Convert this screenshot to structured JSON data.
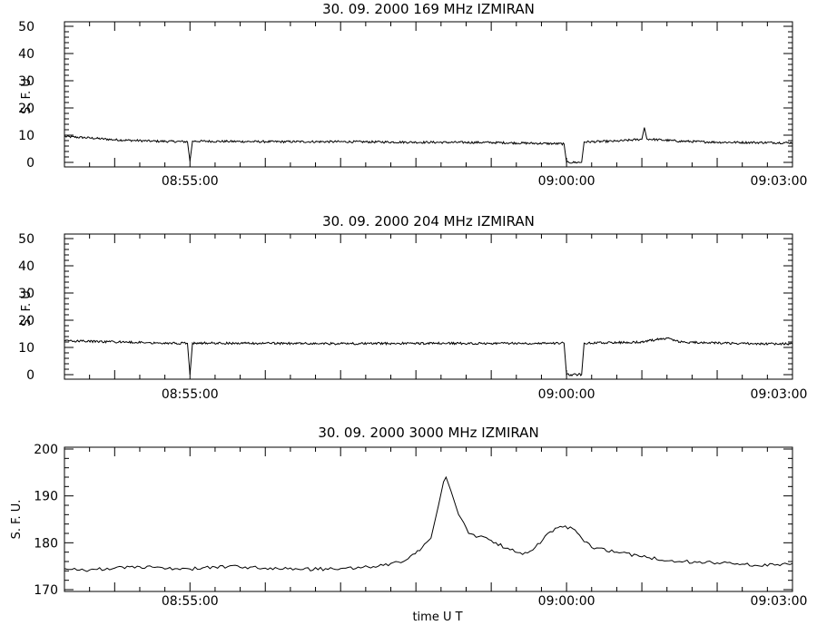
{
  "chart_data": [
    {
      "type": "line",
      "title": "30.  09.  2000    169  MHz    IZMIRAN",
      "ylabel": "S. F. U.",
      "xlabel": "",
      "x_range": [
        "08:53:20",
        "09:03:00"
      ],
      "ylim": [
        0,
        50
      ],
      "y_ticks": [
        "0",
        "10",
        "20",
        "30",
        "40",
        "50"
      ],
      "x_ticks": [
        {
          "time": "08:55:00",
          "label": "08:55:00"
        },
        {
          "time": "09:00:00",
          "label": "09:00:00"
        },
        {
          "time": "09:03:00",
          "label": "09:03:00"
        }
      ],
      "series": [
        {
          "points": [
            [
              "08:53:20",
              9.5
            ],
            [
              "08:53:40",
              9.0
            ],
            [
              "08:54:00",
              8.3
            ],
            [
              "08:54:30",
              7.8
            ],
            [
              "08:54:58",
              7.6
            ],
            [
              "08:55:00",
              0.5
            ],
            [
              "08:55:02",
              7.8
            ],
            [
              "08:55:30",
              7.7
            ],
            [
              "08:56:00",
              7.6
            ],
            [
              "08:57:00",
              7.6
            ],
            [
              "08:58:00",
              7.4
            ],
            [
              "08:59:00",
              7.3
            ],
            [
              "08:59:58",
              6.8
            ],
            [
              "09:00:00",
              0
            ],
            [
              "09:00:12",
              0
            ],
            [
              "09:00:14",
              7.5
            ],
            [
              "09:00:40",
              7.8
            ],
            [
              "09:01:00",
              8.5
            ],
            [
              "09:01:02",
              12.8
            ],
            [
              "09:01:04",
              8.6
            ],
            [
              "09:01:30",
              7.8
            ],
            [
              "09:02:00",
              7.4
            ],
            [
              "09:02:30",
              7.3
            ],
            [
              "09:03:00",
              7.2
            ]
          ]
        }
      ]
    },
    {
      "type": "line",
      "title": "30.  09.  2000    204  MHz    IZMIRAN",
      "ylabel": "S. F. U.",
      "xlabel": "",
      "x_range": [
        "08:53:20",
        "09:03:00"
      ],
      "ylim": [
        0,
        50
      ],
      "y_ticks": [
        "0",
        "10",
        "20",
        "30",
        "40",
        "50"
      ],
      "x_ticks": [
        {
          "time": "08:55:00",
          "label": "08:55:00"
        },
        {
          "time": "09:00:00",
          "label": "09:00:00"
        },
        {
          "time": "09:03:00",
          "label": "09:03:00"
        }
      ],
      "series": [
        {
          "points": [
            [
              "08:53:20",
              12.5
            ],
            [
              "08:54:00",
              12.0
            ],
            [
              "08:54:58",
              11.5
            ],
            [
              "08:55:00",
              0
            ],
            [
              "08:55:02",
              11.6
            ],
            [
              "08:56:00",
              11.5
            ],
            [
              "08:57:00",
              11.4
            ],
            [
              "08:58:00",
              11.5
            ],
            [
              "08:59:00",
              11.5
            ],
            [
              "08:59:58",
              11.6
            ],
            [
              "09:00:00",
              0
            ],
            [
              "09:00:12",
              0
            ],
            [
              "09:00:14",
              11.6
            ],
            [
              "09:00:40",
              11.8
            ],
            [
              "09:01:00",
              12.0
            ],
            [
              "09:01:20",
              13.5
            ],
            [
              "09:01:30",
              12.0
            ],
            [
              "09:02:00",
              11.6
            ],
            [
              "09:02:30",
              11.4
            ],
            [
              "09:03:00",
              11.3
            ]
          ]
        }
      ]
    },
    {
      "type": "line",
      "title": "30.  09.  2000    3000  MHz    IZMIRAN",
      "ylabel": "S. F. U.",
      "xlabel": "time   U T",
      "x_range": [
        "08:53:20",
        "09:03:00"
      ],
      "ylim": [
        170,
        200
      ],
      "y_ticks": [
        "170",
        "180",
        "190",
        "200"
      ],
      "x_ticks": [
        {
          "time": "08:55:00",
          "label": "08:55:00"
        },
        {
          "time": "09:00:00",
          "label": "09:00:00"
        },
        {
          "time": "09:03:00",
          "label": "09:03:00"
        }
      ],
      "series": [
        {
          "points": [
            [
              "08:53:20",
              174.5
            ],
            [
              "08:53:40",
              174.2
            ],
            [
              "08:54:00",
              174.6
            ],
            [
              "08:54:30",
              174.8
            ],
            [
              "08:55:00",
              174.4
            ],
            [
              "08:55:30",
              174.9
            ],
            [
              "08:56:00",
              174.6
            ],
            [
              "08:56:30",
              174.3
            ],
            [
              "08:57:00",
              174.5
            ],
            [
              "08:57:30",
              175.0
            ],
            [
              "08:57:50",
              176.0
            ],
            [
              "08:58:05",
              179.0
            ],
            [
              "08:58:12",
              181.0
            ],
            [
              "08:58:18",
              188.0
            ],
            [
              "08:58:22",
              193.0
            ],
            [
              "08:58:24",
              194.0
            ],
            [
              "08:58:28",
              191.0
            ],
            [
              "08:58:34",
              186.0
            ],
            [
              "08:58:42",
              182.0
            ],
            [
              "08:59:00",
              180.5
            ],
            [
              "08:59:15",
              178.5
            ],
            [
              "08:59:25",
              177.5
            ],
            [
              "08:59:35",
              179.0
            ],
            [
              "08:59:45",
              182.0
            ],
            [
              "08:59:55",
              183.5
            ],
            [
              "09:00:05",
              183.0
            ],
            [
              "09:00:12",
              181.0
            ],
            [
              "09:00:20",
              179.0
            ],
            [
              "09:00:40",
              178.0
            ],
            [
              "09:01:00",
              177.0
            ],
            [
              "09:01:30",
              176.0
            ],
            [
              "09:02:00",
              175.7
            ],
            [
              "09:02:30",
              175.2
            ],
            [
              "09:03:00",
              175.6
            ]
          ]
        }
      ]
    }
  ]
}
